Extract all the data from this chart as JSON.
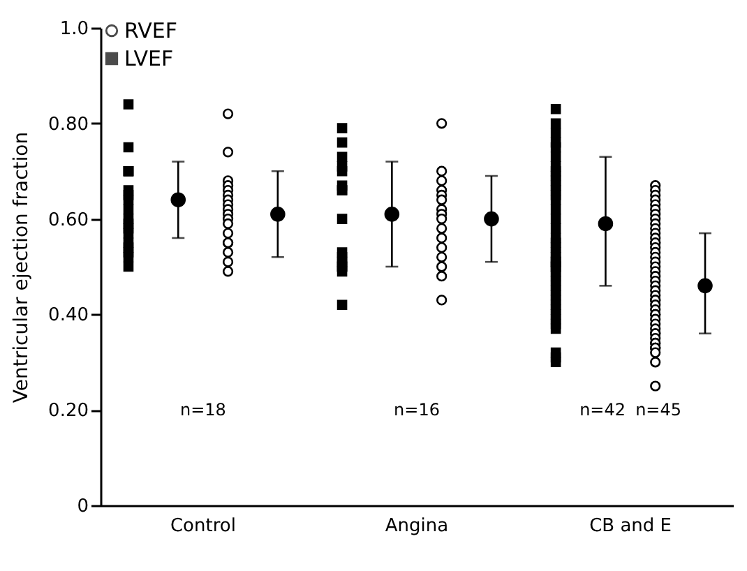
{
  "chart_data": {
    "type": "scatter",
    "ylabel": "Ventricular ejection fraction",
    "categories": [
      "Control",
      "Angina",
      "CB and E"
    ],
    "ylim": [
      0,
      1
    ],
    "yticks": [
      0,
      {
        "value": 0.2,
        "label": "0.20"
      },
      {
        "value": 0.4,
        "label": "0.40"
      },
      {
        "value": 0.6,
        "label": "0.60"
      },
      {
        "value": 0.8,
        "label": "0.80"
      },
      {
        "value": 1,
        "label": "1.0"
      }
    ],
    "grid": false,
    "legend": "top left",
    "series": [
      {
        "name": "LVEF",
        "color": "#000000",
        "marker": "square",
        "x": [
          "Control",
          "Control",
          "Control",
          "Control",
          "Control",
          "Control",
          "Control",
          "Control",
          "Control",
          "Control",
          "Control",
          "Control",
          "Control",
          "Control",
          "Control",
          "Control",
          "Control",
          "Control",
          "Angina",
          "Angina",
          "Angina",
          "Angina",
          "Angina",
          "Angina",
          "Angina",
          "Angina",
          "Angina",
          "Angina",
          "Angina",
          "Angina",
          "Angina",
          "Angina",
          "Angina",
          "Angina",
          "CB and E",
          "CB and E",
          "CB and E",
          "CB and E",
          "CB and E",
          "CB and E",
          "CB and E",
          "CB and E",
          "CB and E",
          "CB and E",
          "CB and E",
          "CB and E",
          "CB and E",
          "CB and E",
          "CB and E",
          "CB and E",
          "CB and E",
          "CB and E",
          "CB and E",
          "CB and E",
          "CB and E",
          "CB and E",
          "CB and E",
          "CB and E",
          "CB and E",
          "CB and E",
          "CB and E",
          "CB and E",
          "CB and E",
          "CB and E",
          "CB and E",
          "CB and E",
          "CB and E",
          "CB and E",
          "CB and E",
          "CB and E",
          "CB and E",
          "CB and E",
          "CB and E",
          "CB and E",
          "CB and E",
          "CB and E"
        ],
        "values": [
          0.84,
          0.75,
          0.7,
          0.7,
          0.7,
          0.66,
          0.65,
          0.64,
          0.62,
          0.6,
          0.59,
          0.58,
          0.57,
          0.55,
          0.54,
          0.53,
          0.52,
          0.5,
          0.79,
          0.76,
          0.73,
          0.71,
          0.7,
          0.67,
          0.66,
          0.66,
          0.6,
          0.53,
          0.52,
          0.51,
          0.5,
          0.5,
          0.49,
          0.42,
          0.83,
          0.8,
          0.78,
          0.76,
          0.75,
          0.73,
          0.71,
          0.7,
          0.69,
          0.68,
          0.67,
          0.66,
          0.65,
          0.64,
          0.62,
          0.6,
          0.58,
          0.56,
          0.55,
          0.54,
          0.53,
          0.52,
          0.51,
          0.51,
          0.5,
          0.5,
          0.49,
          0.48,
          0.47,
          0.46,
          0.45,
          0.44,
          0.43,
          0.42,
          0.41,
          0.4,
          0.39,
          0.38,
          0.37,
          0.32,
          0.31,
          0.3
        ]
      },
      {
        "color": "#000000",
        "marker": "circle",
        "x": [
          "Control",
          "Angina",
          "CB and E"
        ],
        "values": [
          0.64,
          0.61,
          0.59
        ],
        "errors": [
          [
            0.56,
            0.72
          ],
          [
            0.5,
            0.72
          ],
          [
            0.46,
            0.73
          ]
        ]
      },
      {
        "name": "RVEF",
        "color": "#000000",
        "marker": "circle",
        "x": [
          "Control",
          "Control",
          "Control",
          "Control",
          "Control",
          "Control",
          "Control",
          "Control",
          "Control",
          "Control",
          "Control",
          "Control",
          "Control",
          "Control",
          "Control",
          "Control",
          "Control",
          "Control",
          "Angina",
          "Angina",
          "Angina",
          "Angina",
          "Angina",
          "Angina",
          "Angina",
          "Angina",
          "Angina",
          "Angina",
          "Angina",
          "Angina",
          "Angina",
          "Angina",
          "Angina",
          "Angina",
          "CB and E",
          "CB and E",
          "CB and E",
          "CB and E",
          "CB and E",
          "CB and E",
          "CB and E",
          "CB and E",
          "CB and E",
          "CB and E",
          "CB and E",
          "CB and E",
          "CB and E",
          "CB and E",
          "CB and E",
          "CB and E",
          "CB and E",
          "CB and E",
          "CB and E",
          "CB and E",
          "CB and E",
          "CB and E",
          "CB and E",
          "CB and E",
          "CB and E",
          "CB and E",
          "CB and E",
          "CB and E",
          "CB and E",
          "CB and E",
          "CB and E",
          "CB and E",
          "CB and E",
          "CB and E",
          "CB and E",
          "CB and E",
          "CB and E",
          "CB and E",
          "CB and E",
          "CB and E",
          "CB and E",
          "CB and E",
          "CB and E",
          "CB and E",
          "CB and E"
        ],
        "values": [
          0.82,
          0.74,
          0.68,
          0.67,
          0.66,
          0.65,
          0.64,
          0.63,
          0.62,
          0.61,
          0.6,
          0.59,
          0.57,
          0.55,
          0.55,
          0.53,
          0.51,
          0.49,
          0.8,
          0.7,
          0.68,
          0.66,
          0.65,
          0.64,
          0.62,
          0.61,
          0.6,
          0.58,
          0.56,
          0.54,
          0.52,
          0.5,
          0.48,
          0.43,
          0.67,
          0.66,
          0.65,
          0.64,
          0.63,
          0.62,
          0.61,
          0.6,
          0.59,
          0.58,
          0.57,
          0.56,
          0.55,
          0.55,
          0.54,
          0.53,
          0.52,
          0.51,
          0.5,
          0.49,
          0.48,
          0.47,
          0.46,
          0.45,
          0.44,
          0.43,
          0.43,
          0.42,
          0.41,
          0.4,
          0.4,
          0.39,
          0.38,
          0.37,
          0.36,
          0.36,
          0.35,
          0.34,
          0.34,
          0.33,
          0.33,
          0.33,
          0.32,
          0.3,
          0.25
        ]
      },
      {
        "color": "#000000",
        "marker": "circle",
        "x": [
          "Control",
          "Angina",
          "CB and E"
        ],
        "values": [
          0.61,
          0.6,
          0.46
        ],
        "errors": [
          [
            0.52,
            0.7
          ],
          [
            0.51,
            0.69
          ],
          [
            0.36,
            0.57
          ]
        ]
      }
    ],
    "annotations": [
      "n=18",
      "n=16",
      "n=42",
      "n=45"
    ]
  }
}
